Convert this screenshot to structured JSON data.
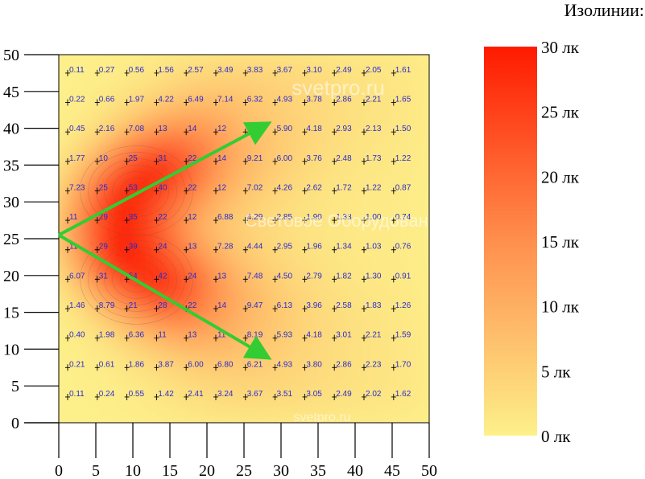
{
  "chart_data": {
    "type": "heatmap",
    "title": "",
    "xlabel": "",
    "ylabel": "",
    "xlim": [
      0,
      50
    ],
    "ylim": [
      0,
      50
    ],
    "x_ticks": [
      0,
      5,
      10,
      15,
      20,
      25,
      30,
      35,
      40,
      45,
      50
    ],
    "y_ticks": [
      0,
      5,
      10,
      15,
      20,
      25,
      30,
      35,
      40,
      45,
      50
    ],
    "grid": false,
    "columns_x": [
      2.5,
      6.5,
      10.5,
      14.5,
      18.5,
      22.5,
      26.5,
      30.5,
      34.5,
      38.5,
      42.5,
      46.5
    ],
    "rows_y": [
      47.5,
      43.5,
      39.5,
      35.5,
      31.5,
      27.5,
      23.5,
      19.5,
      15.5,
      11.5,
      7.5,
      3.5
    ],
    "cells": [
      [
        "0.11",
        "0.27",
        "0.56",
        "1.56",
        "2.57",
        "3.49",
        "3.83",
        "3.67",
        "3.10",
        "2.49",
        "2.05",
        "1.61"
      ],
      [
        "0.22",
        "0.66",
        "1.97",
        "4.22",
        "6.49",
        "7.14",
        "6.32",
        "4.93",
        "3.78",
        "2.86",
        "2.21",
        "1.65"
      ],
      [
        "0.45",
        "2.16",
        "7.08",
        "13",
        "14",
        "12",
        "7.24",
        "5.90",
        "4.18",
        "2.93",
        "2.13",
        "1.50"
      ],
      [
        "1.77",
        "10",
        "25",
        "31",
        "22",
        "14",
        "9.21",
        "6.00",
        "3.76",
        "2.48",
        "1.73",
        "1.22"
      ],
      [
        "7.23",
        "25",
        "53",
        "40",
        "22",
        "12",
        "7.02",
        "4.26",
        "2.62",
        "1.72",
        "1.22",
        "0.87"
      ],
      [
        "11",
        "29",
        "35",
        "22",
        "12",
        "6.88",
        "4.29",
        "2.85",
        "1.90",
        "1.33",
        "1.00",
        "0.74"
      ],
      [
        "11",
        "29",
        "39",
        "24",
        "13",
        "7.28",
        "4.44",
        "2.95",
        "1.96",
        "1.34",
        "1.03",
        "0.76"
      ],
      [
        "6.07",
        "31",
        "54",
        "42",
        "24",
        "13",
        "7.48",
        "4.50",
        "2.79",
        "1.82",
        "1.30",
        "0.91"
      ],
      [
        "1.46",
        "8.79",
        "21",
        "28",
        "22",
        "14",
        "9.47",
        "6.13",
        "3.96",
        "2.58",
        "1.83",
        "1.26"
      ],
      [
        "0.40",
        "1.98",
        "6.36",
        "11",
        "13",
        "11",
        "8.19",
        "5.93",
        "4.18",
        "3.01",
        "2.21",
        "1.59"
      ],
      [
        "0.21",
        "0.61",
        "1.86",
        "3.87",
        "6.00",
        "6.80",
        "6.21",
        "4.93",
        "3.80",
        "2.86",
        "2.23",
        "1.70"
      ],
      [
        "0.11",
        "0.24",
        "0.55",
        "1.42",
        "2.41",
        "3.24",
        "3.67",
        "3.51",
        "3.05",
        "2.49",
        "2.02",
        "1.62"
      ]
    ],
    "arrows": [
      {
        "from": [
          0,
          25.5
        ],
        "to": [
          28,
          40.5
        ]
      },
      {
        "from": [
          0,
          25.5
        ],
        "to": [
          28,
          9
        ]
      }
    ],
    "arrow_color": "#33cc33",
    "legend": {
      "title": "Изолинии:",
      "placement": "right",
      "labels": [
        "30 лк",
        "25 лк",
        "20 лк",
        "15 лк",
        "10 лк",
        "5 лк",
        "0 лк"
      ],
      "values": [
        30,
        25,
        20,
        15,
        10,
        5,
        0
      ],
      "color_max": "#ff1a00",
      "color_mid": "#ff8f4d",
      "color_min": "#fdf08a"
    },
    "watermarks": [
      "svetpro.ru",
      "Световое Оборудование",
      "svetpro.ru"
    ]
  }
}
